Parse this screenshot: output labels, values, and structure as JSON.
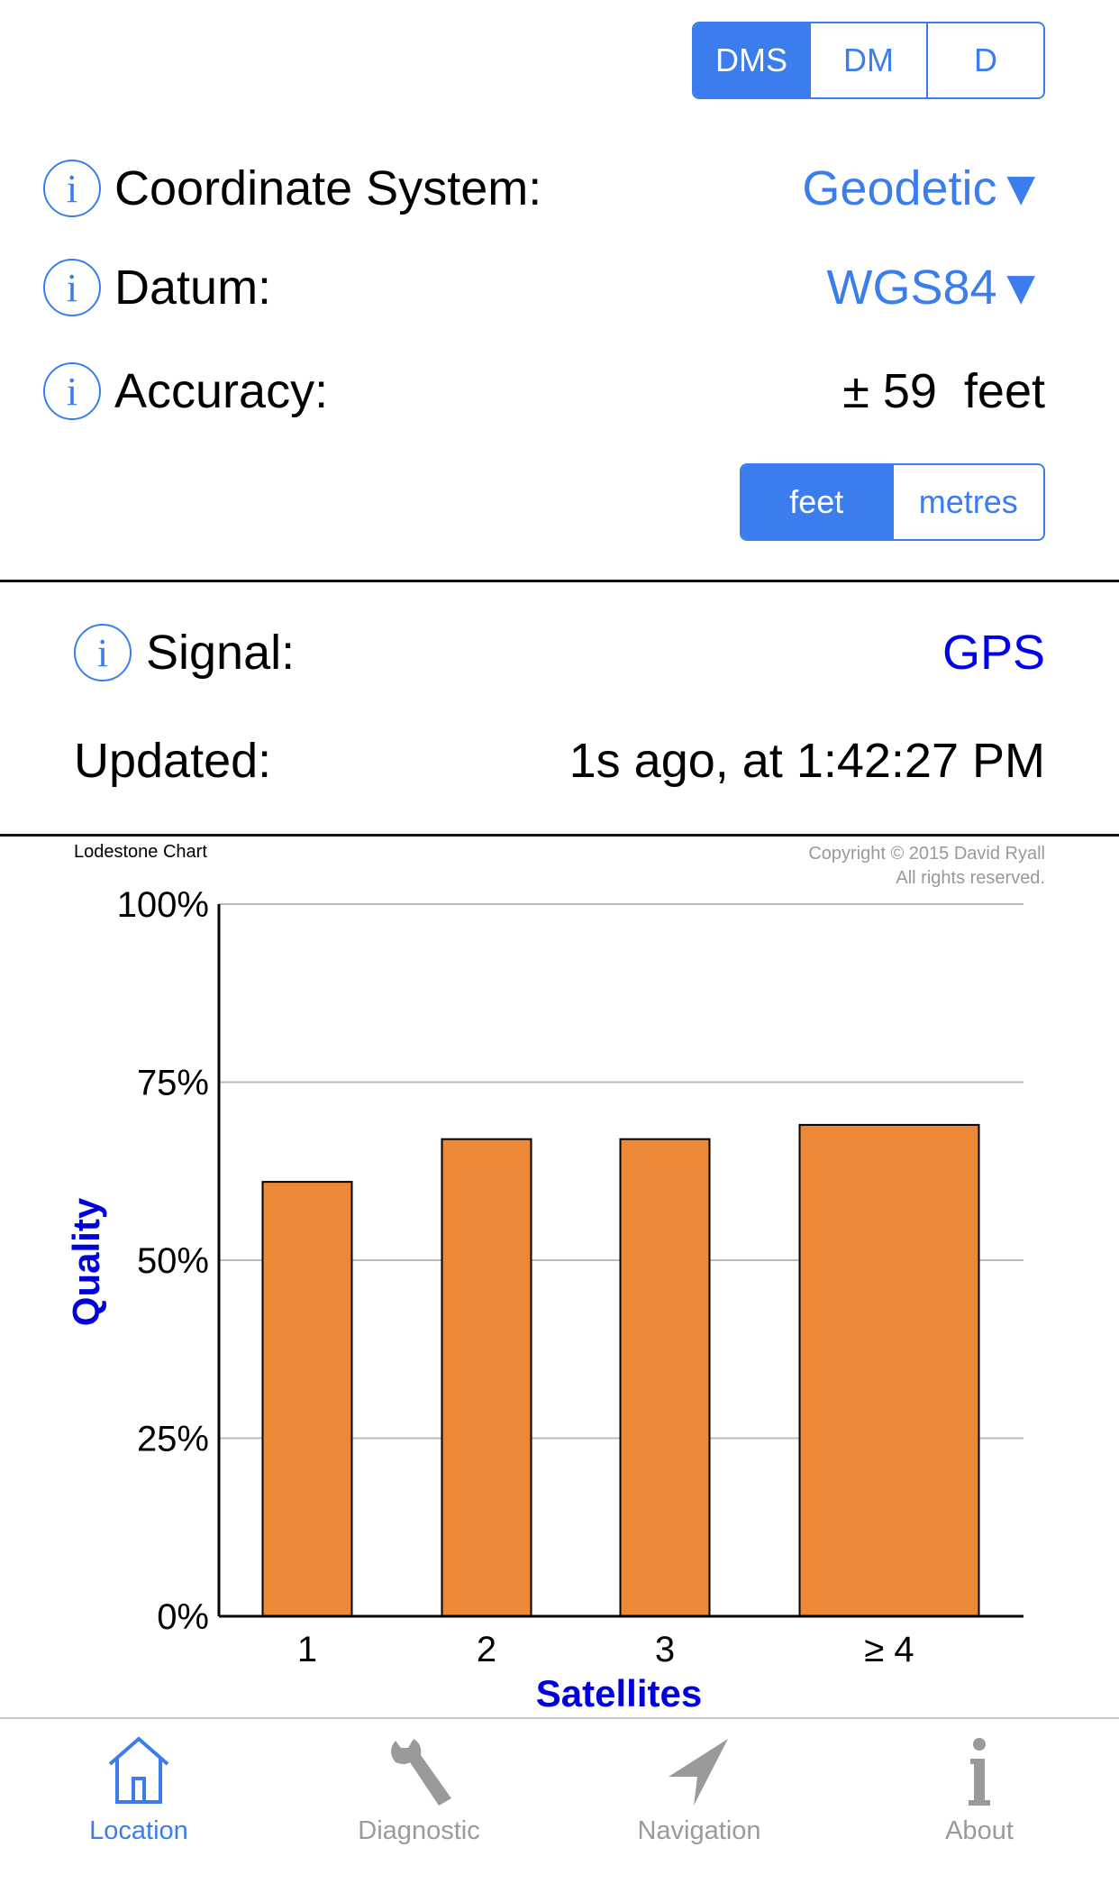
{
  "format_selector": {
    "options": [
      "DMS",
      "DM",
      "D"
    ],
    "selected": "DMS"
  },
  "rows": {
    "coordinate_system": {
      "label": "Coordinate System:",
      "value": "Geodetic▼"
    },
    "datum": {
      "label": "Datum:",
      "value": "WGS84▼"
    },
    "accuracy": {
      "label": "Accuracy:",
      "value": "± 59  feet"
    }
  },
  "unit_selector": {
    "options": [
      "feet",
      "metres"
    ],
    "selected": "feet"
  },
  "signal": {
    "label": "Signal:",
    "value": "GPS"
  },
  "updated": {
    "label": "Updated:",
    "value": "1s ago, at 1:42:27 PM"
  },
  "info_icon": "i",
  "chart_header": {
    "title": "Lodestone Chart",
    "copyright_line1": "Copyright © 2015 David Ryall",
    "copyright_line2": "All rights reserved."
  },
  "chart_data": {
    "type": "bar",
    "categories": [
      "1",
      "2",
      "3",
      "≥ 4"
    ],
    "values": [
      61,
      67,
      67,
      69
    ],
    "xlabel": "Satellites",
    "ylabel": "Quality",
    "ylim": [
      0,
      100
    ],
    "yticks": [
      "0%",
      "25%",
      "50%",
      "75%",
      "100%"
    ],
    "grid": true,
    "bar_color": "#ed8836",
    "label_color": "#0000dd"
  },
  "tabs": [
    {
      "label": "Location",
      "icon": "house-icon",
      "active": true
    },
    {
      "label": "Diagnostic",
      "icon": "wrench-icon",
      "active": false
    },
    {
      "label": "Navigation",
      "icon": "arrow-icon",
      "active": false
    },
    {
      "label": "About",
      "icon": "info-icon",
      "active": false
    }
  ],
  "colors": {
    "accent": "#3b7ded",
    "inactive": "#9a9a9a"
  }
}
